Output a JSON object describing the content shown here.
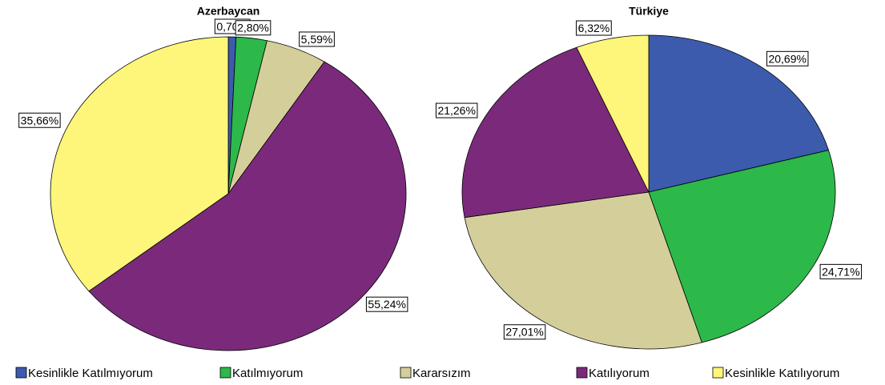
{
  "chart_data": [
    {
      "type": "pie",
      "title": "Azerbaycan",
      "categories": [
        "Kesinlikle Katılmıyorum",
        "Katılmıyorum",
        "Kararsızım",
        "Katılıyorum",
        "Kesinlikle Katılıyorum"
      ],
      "colors": [
        "#3c5bad",
        "#2db84a",
        "#d4cf9a",
        "#7b2a7b",
        "#fdf67a"
      ],
      "values": [
        0.7,
        2.8,
        5.59,
        55.24,
        35.66
      ],
      "value_labels": [
        "0,70%",
        "2,80%",
        "5,59%",
        "55,24%",
        "35,66%"
      ]
    },
    {
      "type": "pie",
      "title": "Türkiye",
      "categories": [
        "Kesinlikle Katılmıyorum",
        "Katılmıyorum",
        "Kararsızım",
        "Katılıyorum",
        "Kesinlikle Katılıyorum"
      ],
      "colors": [
        "#3c5bad",
        "#2db84a",
        "#d4cf9a",
        "#7b2a7b",
        "#fdf67a"
      ],
      "values": [
        20.69,
        24.71,
        27.01,
        21.26,
        6.32
      ],
      "value_labels": [
        "20,69%",
        "24,71%",
        "27,01%",
        "21,26%",
        "6,32%"
      ]
    }
  ]
}
